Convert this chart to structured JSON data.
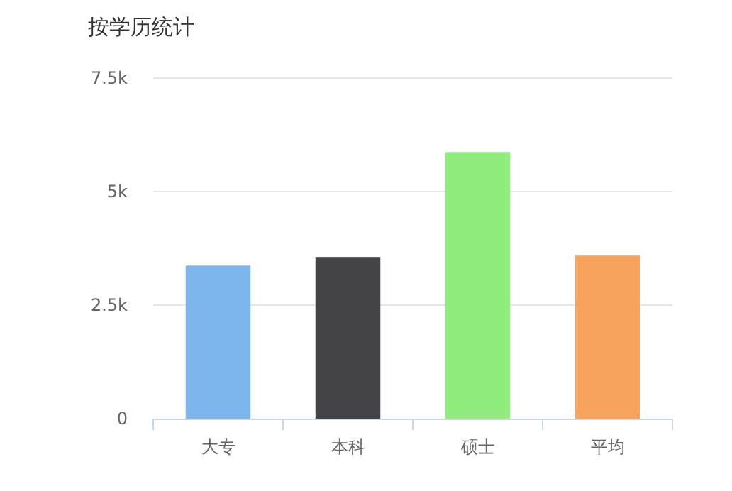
{
  "chart_data": {
    "type": "bar",
    "title": "按学历统计",
    "categories": [
      "大专",
      "本科",
      "硕士",
      "平均"
    ],
    "values": [
      3370,
      3560,
      5870,
      3590
    ],
    "colors": [
      "#7cb5ec",
      "#434348",
      "#90ed7d",
      "#f7a35c"
    ],
    "ylim": [
      0,
      7500
    ],
    "yticks": [
      {
        "value": 0,
        "label": "0"
      },
      {
        "value": 2500,
        "label": "2.5k"
      },
      {
        "value": 5000,
        "label": "5k"
      },
      {
        "value": 7500,
        "label": "7.5k"
      }
    ],
    "grid": "y"
  }
}
